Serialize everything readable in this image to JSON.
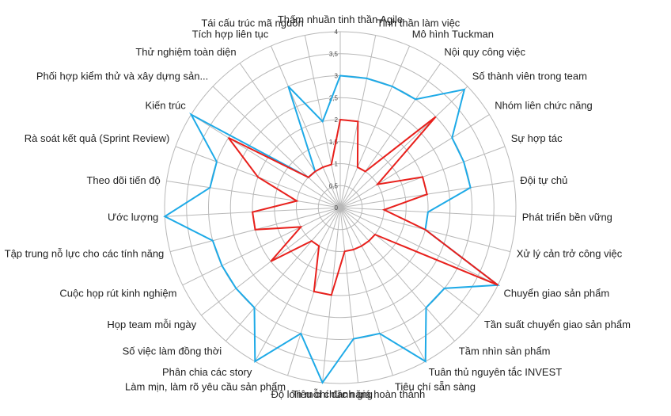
{
  "chart_data": {
    "type": "radar",
    "title": "",
    "rlim": [
      0,
      4
    ],
    "ticks": [
      "0",
      "0,5",
      "1",
      "1,5",
      "2",
      "2,5",
      "3",
      "3,5",
      "4"
    ],
    "grid": true,
    "legend": "none",
    "categories": [
      "Thấm nhuần tinh thần Agile",
      "Tinh thần làm việc",
      "Mô hình Tuckman",
      "Nội quy công việc",
      "Số thành viên trong team",
      "Nhóm liên chức năng",
      "Sự hợp tác",
      "Đội tự chủ",
      "Phát triển bền vững",
      "Xử lý cản trở công việc",
      "Chuyển giao sản phẩm",
      "Tần suất chuyển giao sản phẩm",
      "Tầm nhìn sản phẩm",
      "Tuân thủ nguyên tắc INVEST",
      "Tiêu chí sẵn sàng",
      "Tiêu chí đánh giá hoàn thành",
      "Độ lớn mỗi chức năng",
      "Làm mịn, làm rõ yêu cầu sản phẩm",
      "Phân chia các story",
      "Số việc làm đồng thời",
      "Họp team mỗi ngày",
      "Cuộc họp rút kinh nghiệm",
      "Tập trung nỗ lực cho các tính năng",
      "Ước lượng",
      "Theo dõi tiến độ",
      "Rà soát kết quả (Sprint Review)",
      "Kiến trúc",
      "Phối hợp kiểm thử và xây dựng sản...",
      "Thử nghiệm toàn diện",
      "Tích hợp liên tục",
      "Tái cấu trúc mã nguồn"
    ],
    "series": [
      {
        "color": "#1eaae7",
        "values": [
          3.0,
          3.0,
          3.0,
          3.0,
          3.9,
          3.0,
          3.0,
          3.0,
          2.0,
          2.0,
          4.0,
          3.0,
          3.0,
          4.0,
          3.0,
          3.0,
          4.0,
          3.0,
          4.0,
          3.0,
          3.0,
          3.0,
          3.0,
          4.0,
          3.0,
          3.0,
          4.0,
          1.0,
          1.0,
          3.0,
          2.0
        ]
      },
      {
        "color": "#e8201c",
        "values": [
          2.0,
          2.0,
          1.0,
          1.0,
          3.0,
          1.0,
          2.0,
          2.0,
          1.0,
          2.0,
          4.0,
          1.0,
          1.0,
          1.0,
          1.0,
          1.0,
          2.0,
          2.0,
          1.0,
          1.0,
          2.0,
          1.0,
          2.0,
          2.0,
          1.0,
          2.0,
          3.0,
          1.0,
          1.0,
          1.0,
          1.0
        ]
      }
    ]
  }
}
